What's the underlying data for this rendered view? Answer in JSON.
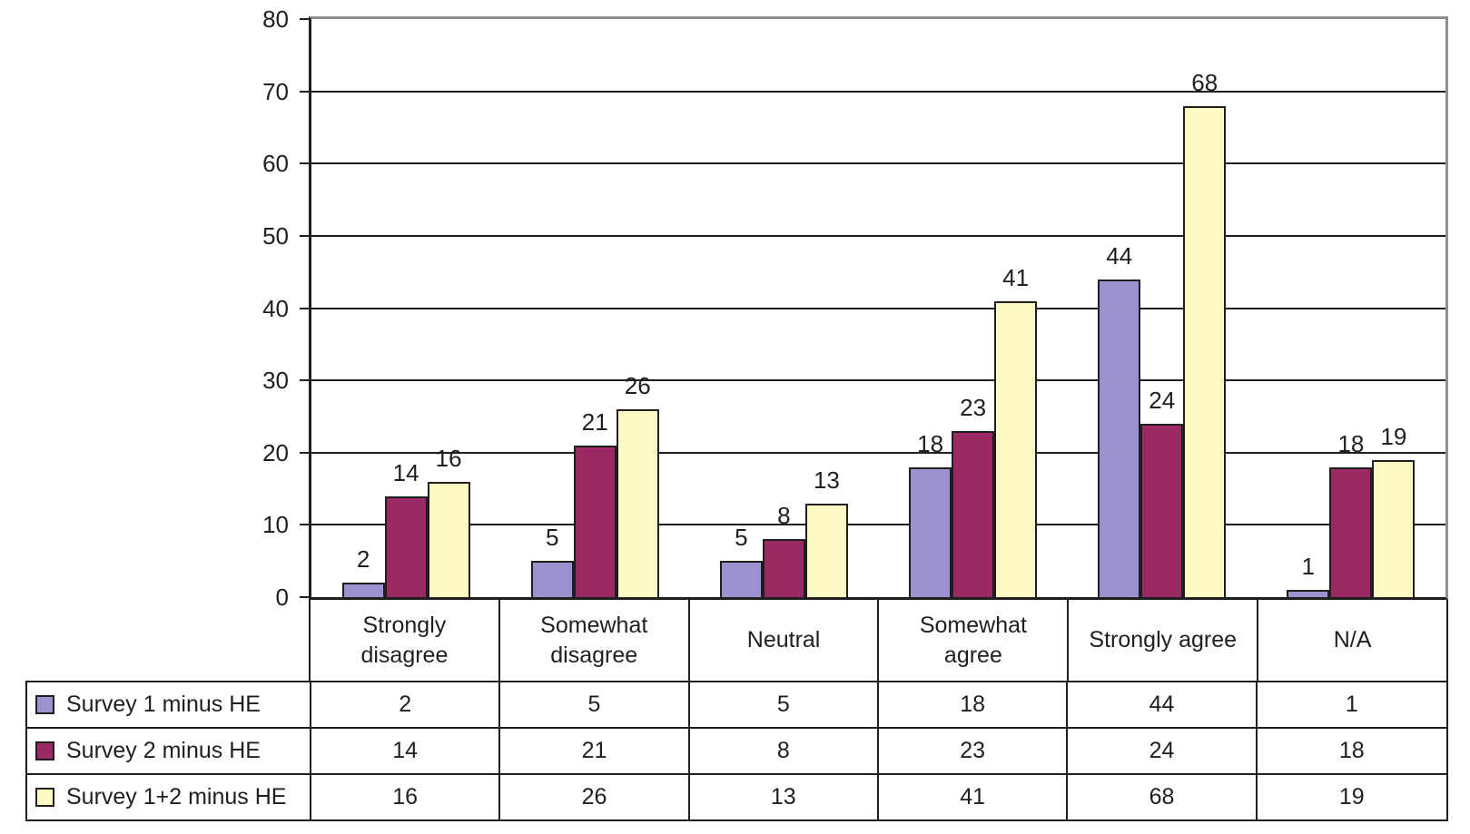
{
  "chart_data": {
    "type": "bar",
    "title": "",
    "categories": [
      {
        "id": "strongly-disagree",
        "lines": [
          "Strongly",
          "disagree"
        ]
      },
      {
        "id": "somewhat-disagree",
        "lines": [
          "Somewhat",
          "disagree"
        ]
      },
      {
        "id": "neutral",
        "lines": [
          "Neutral"
        ]
      },
      {
        "id": "somewhat-agree",
        "lines": [
          "Somewhat",
          "agree"
        ]
      },
      {
        "id": "strongly-agree",
        "lines": [
          "Strongly agree"
        ]
      },
      {
        "id": "na",
        "lines": [
          "N/A"
        ]
      }
    ],
    "series": [
      {
        "name": "Survey 1 minus HE",
        "color": "#9A93CF",
        "values": [
          2,
          5,
          5,
          18,
          44,
          1
        ]
      },
      {
        "name": "Survey 2 minus HE",
        "color": "#9A2A63",
        "values": [
          14,
          21,
          8,
          23,
          24,
          18
        ]
      },
      {
        "name": "Survey 1+2 minus HE",
        "color": "#FCF9C4",
        "values": [
          16,
          26,
          13,
          41,
          68,
          19
        ]
      }
    ],
    "y_axis": {
      "min": 0,
      "max": 80,
      "step": 10
    },
    "ylim": [
      0,
      80
    ],
    "grid": true,
    "data_labels": true,
    "legend_position": "table-left",
    "xlabel": "",
    "ylabel": "",
    "colors": {
      "gridline": "#1f1f1f",
      "axis": "#1f1f1f",
      "outer_border_gray": "#8f8f8f",
      "bar_outline": "#1f1f1f",
      "text": "#1f1f1f",
      "background": "#ffffff"
    }
  }
}
